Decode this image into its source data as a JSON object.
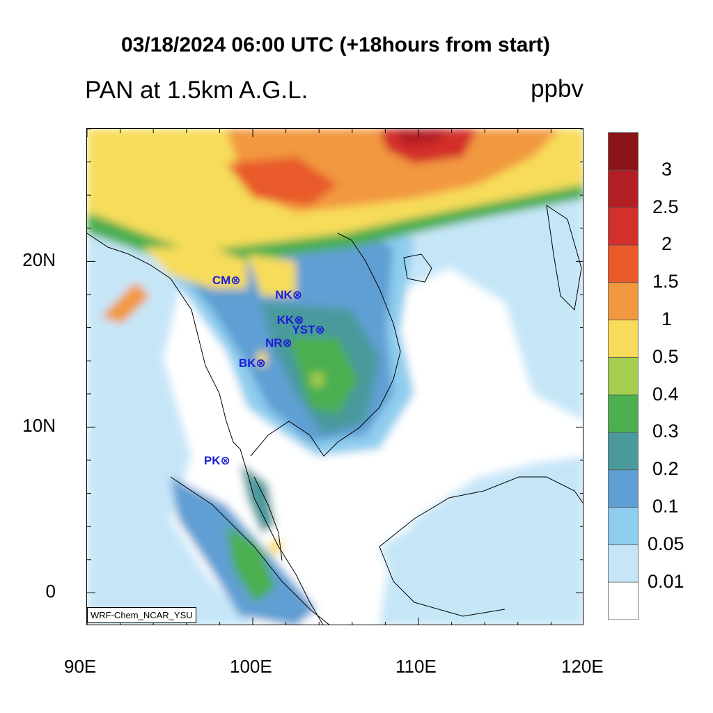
{
  "title": "03/18/2024 06:00 UTC (+18hours from start)",
  "subtitle_left": "PAN at 1.5km A.G.L.",
  "subtitle_right": "ppbv",
  "watermark": "WRF-Chem_NCAR_YSU",
  "axes": {
    "lon_range": [
      90,
      120
    ],
    "lat_range": [
      -2,
      28
    ],
    "x_ticks": [
      {
        "value": 90,
        "label": "90E"
      },
      {
        "value": 100,
        "label": "100E"
      },
      {
        "value": 110,
        "label": "110E"
      },
      {
        "value": 120,
        "label": "120E"
      }
    ],
    "y_ticks": [
      {
        "value": 20,
        "label": "20N"
      },
      {
        "value": 10,
        "label": "10N"
      },
      {
        "value": 0,
        "label": "0"
      }
    ]
  },
  "colorbar": {
    "levels": [
      "0.01",
      "0.05",
      "0.1",
      "0.2",
      "0.3",
      "0.4",
      "0.5",
      "1",
      "1.5",
      "2",
      "2.5",
      "3"
    ],
    "colors": [
      "#ffffff",
      "#c6e6f8",
      "#8fcdee",
      "#5f9fd3",
      "#4a9a9c",
      "#4caf50",
      "#a5cd4e",
      "#f6dc5a",
      "#f29840",
      "#e85a2a",
      "#d32f2b",
      "#b31f22",
      "#8b1419"
    ]
  },
  "stations": [
    {
      "code": "CM",
      "lon": 98.9,
      "lat": 18.8
    },
    {
      "code": "NK",
      "lon": 102.7,
      "lat": 17.9
    },
    {
      "code": "KK",
      "lon": 102.8,
      "lat": 16.4
    },
    {
      "code": "YST",
      "lon": 104.2,
      "lat": 15.8
    },
    {
      "code": "NR",
      "lon": 102.1,
      "lat": 15.0
    },
    {
      "code": "BK",
      "lon": 100.5,
      "lat": 13.8
    },
    {
      "code": "PK",
      "lon": 98.4,
      "lat": 7.9
    }
  ]
}
